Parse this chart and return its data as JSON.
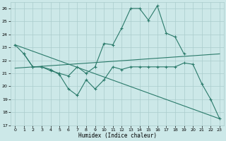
{
  "background_color": "#cce8e8",
  "grid_color": "#aacccc",
  "line_color": "#2a7a6a",
  "xlabel": "Humidex (Indice chaleur)",
  "xlim": [
    -0.5,
    23.5
  ],
  "ylim": [
    17,
    26.5
  ],
  "yticks": [
    17,
    18,
    19,
    20,
    21,
    22,
    23,
    24,
    25,
    26
  ],
  "xticks": [
    0,
    1,
    2,
    3,
    4,
    5,
    6,
    7,
    8,
    9,
    10,
    11,
    12,
    13,
    14,
    15,
    16,
    17,
    18,
    19,
    20,
    21,
    22,
    23
  ],
  "curve1_x": [
    0,
    1,
    2,
    3,
    4,
    5,
    6,
    7,
    8,
    9,
    10,
    11,
    12,
    13,
    14,
    15,
    16,
    17,
    18,
    19
  ],
  "curve1_y": [
    23.2,
    22.5,
    21.5,
    21.5,
    21.2,
    21.0,
    20.8,
    21.5,
    21.0,
    21.5,
    23.3,
    23.2,
    24.5,
    26.0,
    26.0,
    25.1,
    26.2,
    24.1,
    23.8,
    22.5
  ],
  "curve2_x": [
    1,
    2,
    3,
    4,
    5,
    6,
    7,
    8,
    9,
    10,
    11,
    12,
    13,
    14,
    15,
    16,
    17,
    18,
    19,
    20,
    21,
    22,
    23
  ],
  "curve2_y": [
    22.5,
    21.5,
    21.5,
    21.3,
    20.9,
    19.8,
    19.3,
    20.5,
    19.8,
    20.5,
    21.5,
    21.3,
    21.5,
    21.5,
    21.5,
    21.5,
    21.5,
    21.5,
    21.8,
    21.7,
    20.2,
    19.0,
    17.5
  ],
  "trend1_x": [
    0,
    23
  ],
  "trend1_y": [
    21.4,
    22.5
  ],
  "trend2_x": [
    0,
    23
  ],
  "trend2_y": [
    23.2,
    17.5
  ]
}
